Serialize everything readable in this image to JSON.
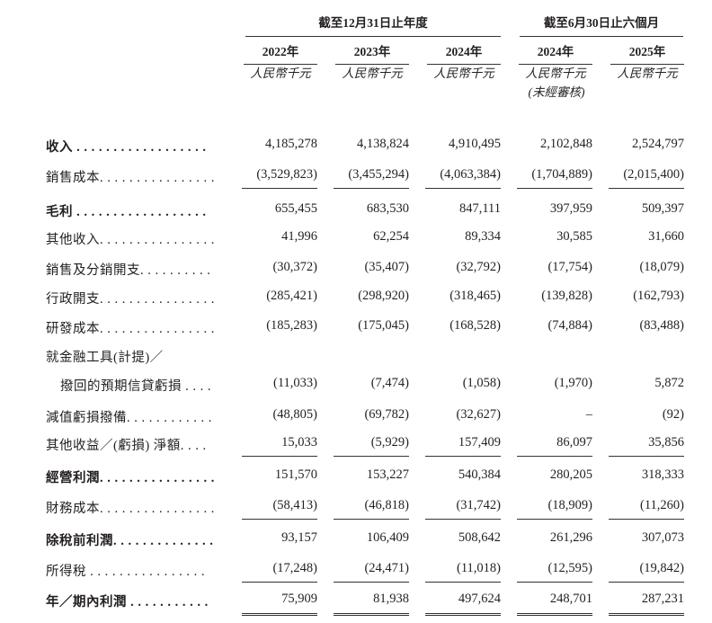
{
  "header": {
    "groups": [
      "截至12月31日止年度",
      "截至6月30日止六個月"
    ],
    "years": [
      "2022年",
      "2023年",
      "2024年",
      "2024年",
      "2025年"
    ],
    "units": [
      "人民幣千元",
      "人民幣千元",
      "人民幣千元",
      "人民幣千元",
      "人民幣千元"
    ],
    "unaudited_note": "(未經審核)"
  },
  "rows": [
    {
      "label": "收入 . . . . . . . . . . . . . . . . . .",
      "values": [
        "4,185,278",
        "4,138,824",
        "4,910,495",
        "2,102,848",
        "2,524,797"
      ]
    },
    {
      "label": "銷售成本. . . . . . . . . . . . . . . .",
      "values": [
        "(3,529,823)",
        "(3,455,294)",
        "(4,063,384)",
        "(1,704,889)",
        "(2,015,400)"
      ]
    },
    {
      "label": "毛利 . . . . . . . . . . . . . . . . . .",
      "values": [
        "655,455",
        "683,530",
        "847,111",
        "397,959",
        "509,397"
      ]
    },
    {
      "label": "其他收入. . . . . . . . . . . . . . . .",
      "values": [
        "41,996",
        "62,254",
        "89,334",
        "30,585",
        "31,660"
      ]
    },
    {
      "label": "銷售及分銷開支. . . . . . . . . .",
      "values": [
        "(30,372)",
        "(35,407)",
        "(32,792)",
        "(17,754)",
        "(18,079)"
      ]
    },
    {
      "label": "行政開支. . . . . . . . . . . . . . . .",
      "values": [
        "(285,421)",
        "(298,920)",
        "(318,465)",
        "(139,828)",
        "(162,793)"
      ]
    },
    {
      "label": "研發成本. . . . . . . . . . . . . . . .",
      "values": [
        "(185,283)",
        "(175,045)",
        "(168,528)",
        "(74,884)",
        "(83,488)"
      ]
    },
    {
      "label": "就金融工具(計提)／",
      "values": [
        "",
        "",
        "",
        "",
        ""
      ]
    },
    {
      "label": "撥回的預期信貸虧損 . . . .",
      "values": [
        "(11,033)",
        "(7,474)",
        "(1,058)",
        "(1,970)",
        "5,872"
      ]
    },
    {
      "label": "減值虧損撥備. . . . . . . . . . . .",
      "values": [
        "(48,805)",
        "(69,782)",
        "(32,627)",
        "–",
        "(92)"
      ]
    },
    {
      "label": "其他收益／(虧損) 淨額. . . .",
      "values": [
        "15,033",
        "(5,929)",
        "157,409",
        "86,097",
        "35,856"
      ]
    },
    {
      "label": "經營利潤. . . . . . . . . . . . . . . .",
      "values": [
        "151,570",
        "153,227",
        "540,384",
        "280,205",
        "318,333"
      ]
    },
    {
      "label": "財務成本. . . . . . . . . . . . . . . .",
      "values": [
        "(58,413)",
        "(46,818)",
        "(31,742)",
        "(18,909)",
        "(11,260)"
      ]
    },
    {
      "label": "除稅前利潤. . . . . . . . . . . . . .",
      "values": [
        "93,157",
        "106,409",
        "508,642",
        "261,296",
        "307,073"
      ]
    },
    {
      "label": "所得稅 . . . . . . . . . . . . . . . .",
      "values": [
        "(17,248)",
        "(24,471)",
        "(11,018)",
        "(12,595)",
        "(19,842)"
      ]
    },
    {
      "label": "年／期內利潤 . . . . . . . . . . .",
      "values": [
        "75,909",
        "81,938",
        "497,624",
        "248,701",
        "287,231"
      ]
    }
  ]
}
